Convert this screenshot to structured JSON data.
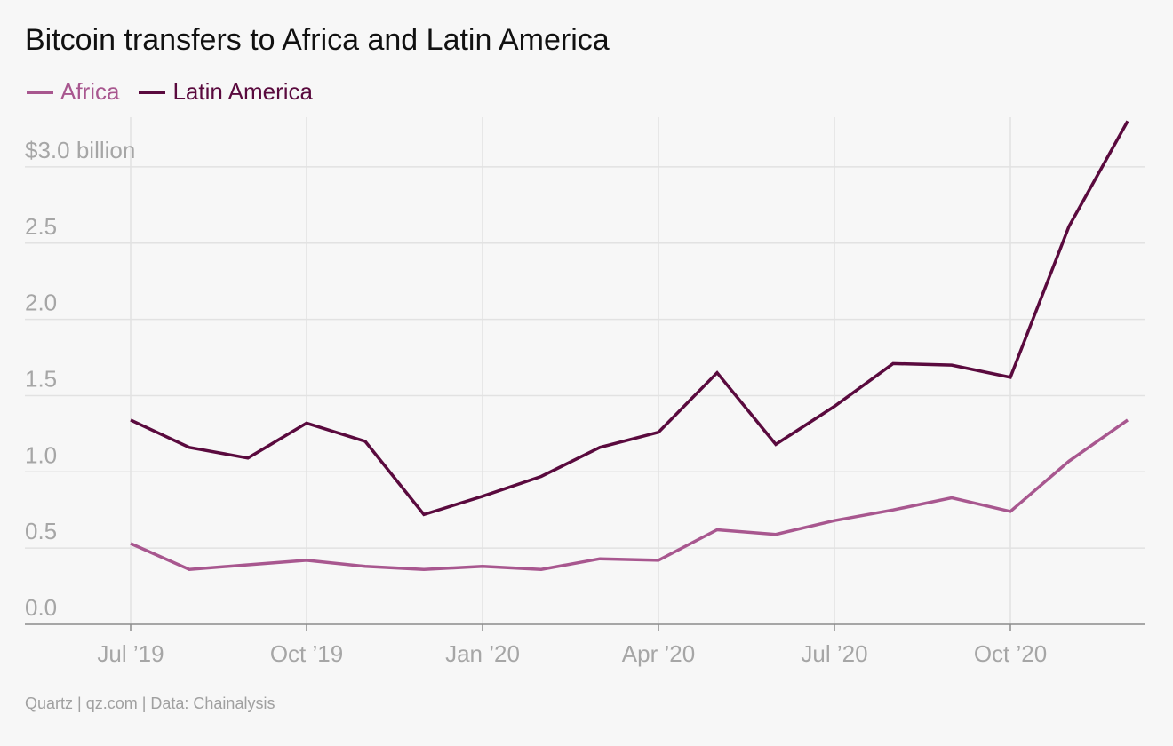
{
  "title": "Bitcoin transfers to Africa and Latin America",
  "source": "Quartz | qz.com | Data: Chainalysis",
  "colors": {
    "africa": "#a8578f",
    "latin_america": "#5a0a3e",
    "grid": "#e2e2e2",
    "axis": "#8c8c8c",
    "tick_text": "#a6a6a6"
  },
  "legend": [
    {
      "label": "Africa",
      "color": "#a8578f"
    },
    {
      "label": "Latin America",
      "color": "#5a0a3e"
    }
  ],
  "chart_data": {
    "type": "line",
    "x": [
      "2019-07",
      "2019-08",
      "2019-09",
      "2019-10",
      "2019-11",
      "2019-12",
      "2020-01",
      "2020-02",
      "2020-03",
      "2020-04",
      "2020-05",
      "2020-06",
      "2020-07",
      "2020-08",
      "2020-09",
      "2020-10",
      "2020-11",
      "2020-12"
    ],
    "series": [
      {
        "name": "Africa",
        "color": "#a8578f",
        "values": [
          0.53,
          0.36,
          0.39,
          0.42,
          0.38,
          0.36,
          0.38,
          0.36,
          0.43,
          0.42,
          0.62,
          0.59,
          0.68,
          0.75,
          0.83,
          0.74,
          1.07,
          1.34
        ]
      },
      {
        "name": "Latin America",
        "color": "#5a0a3e",
        "values": [
          1.34,
          1.16,
          1.09,
          1.32,
          1.2,
          0.72,
          0.84,
          0.97,
          1.16,
          1.26,
          1.65,
          1.18,
          1.43,
          1.71,
          1.7,
          1.62,
          2.61,
          3.3
        ]
      }
    ],
    "yticks": [
      {
        "value": 0,
        "label": "0.0"
      },
      {
        "value": 0.5,
        "label": "0.5"
      },
      {
        "value": 1.0,
        "label": "1.0"
      },
      {
        "value": 1.5,
        "label": "1.5"
      },
      {
        "value": 2.0,
        "label": "2.0"
      },
      {
        "value": 2.5,
        "label": "2.5"
      },
      {
        "value": 3.0,
        "label": "$3.0 billion"
      }
    ],
    "xticks": [
      {
        "index": 0,
        "label": "Jul ’19"
      },
      {
        "index": 3,
        "label": "Oct ’19"
      },
      {
        "index": 6,
        "label": "Jan ’20"
      },
      {
        "index": 9,
        "label": "Apr ’20"
      },
      {
        "index": 12,
        "label": "Jul ’20"
      },
      {
        "index": 15,
        "label": "Oct ’20"
      }
    ],
    "ylim": [
      0,
      3.3
    ],
    "grid": true,
    "legend_position": "top-left"
  }
}
